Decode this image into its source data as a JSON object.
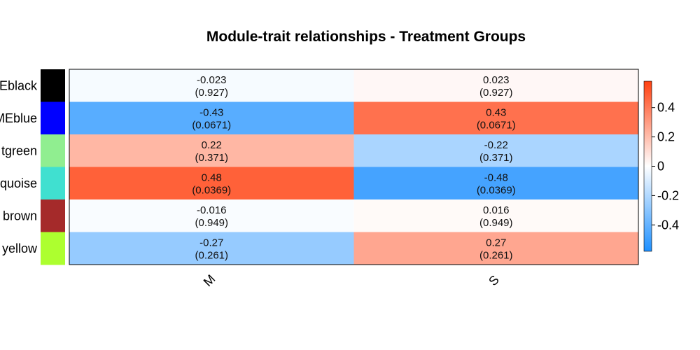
{
  "chart_data": {
    "type": "heatmap",
    "title": "Module-trait relationships - Treatment Groups",
    "columns": [
      "M",
      "S"
    ],
    "rows": [
      {
        "label": "Eblack",
        "color": "#000000"
      },
      {
        "label": "MEblue",
        "color": "#0000FF"
      },
      {
        "label": "tgreen",
        "color": "#90EE90"
      },
      {
        "label": "quoise",
        "color": "#40E0D0"
      },
      {
        "label": "brown",
        "color": "#A52A2A"
      },
      {
        "label": "yellow",
        "color": "#ADFF2F"
      }
    ],
    "values": [
      [
        -0.023,
        0.023
      ],
      [
        -0.43,
        0.43
      ],
      [
        0.22,
        -0.22
      ],
      [
        0.48,
        -0.48
      ],
      [
        -0.016,
        0.016
      ],
      [
        -0.27,
        0.27
      ]
    ],
    "value_labels": [
      [
        "-0.023",
        "0.023"
      ],
      [
        "-0.43",
        "0.43"
      ],
      [
        "0.22",
        "-0.22"
      ],
      [
        "0.48",
        "-0.48"
      ],
      [
        "-0.016",
        "0.016"
      ],
      [
        "-0.27",
        "0.27"
      ]
    ],
    "pvalue_labels": [
      [
        "(0.927)",
        "(0.927)"
      ],
      [
        "(0.0671)",
        "(0.0671)"
      ],
      [
        "(0.371)",
        "(0.371)"
      ],
      [
        "(0.0369)",
        "(0.0369)"
      ],
      [
        "(0.949)",
        "(0.949)"
      ],
      [
        "(0.261)",
        "(0.261)"
      ]
    ],
    "color_range": [
      -0.58,
      0.58
    ],
    "color_scale": {
      "negative": "#1E90FF",
      "zero": "#FFFFFF",
      "positive": "#FF4010"
    },
    "colorbar_ticks": [
      0.4,
      0.2,
      0,
      -0.2,
      -0.4
    ],
    "colorbar_tick_labels": [
      "0.4",
      "0.2",
      "0",
      "-0.2",
      "-0.4"
    ],
    "legend_placement": "right"
  }
}
